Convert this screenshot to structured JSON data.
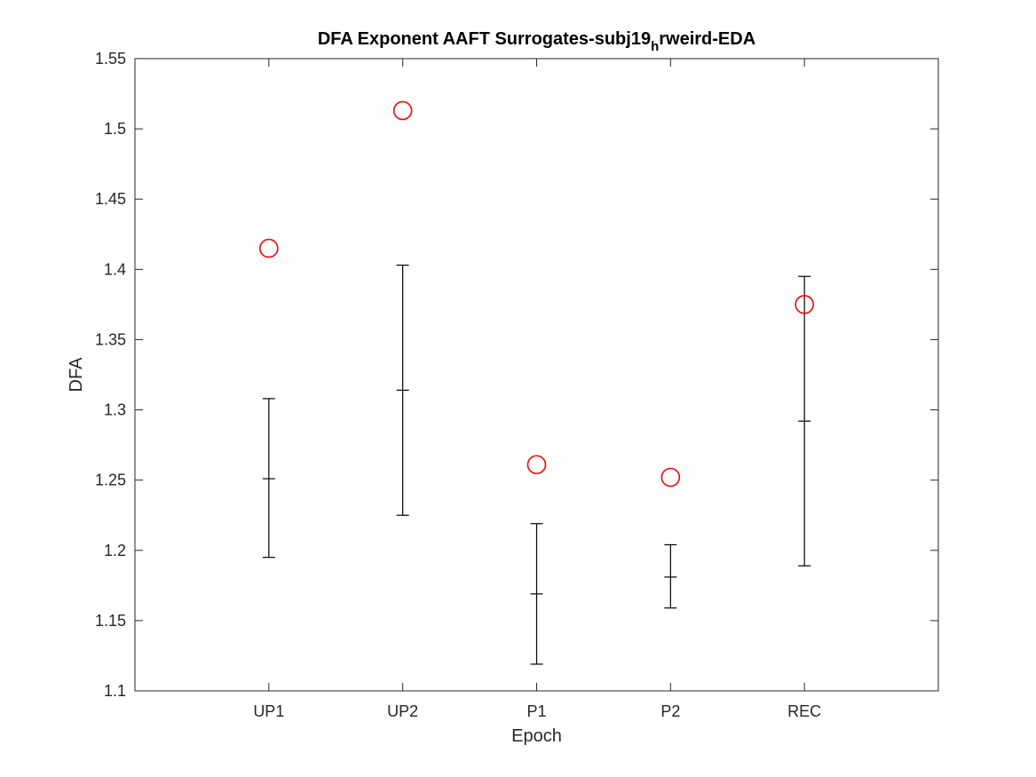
{
  "chart_data": {
    "type": "scatter",
    "title": {
      "main": "DFA Exponent AAFT Surrogates-subj19",
      "subscript": "h",
      "rest": "rweird-EDA"
    },
    "xlabel": "Epoch",
    "ylabel": "DFA",
    "categories": [
      "UP1",
      "UP2",
      "P1",
      "P2",
      "REC"
    ],
    "xlim": [
      0,
      6
    ],
    "ylim": [
      1.1,
      1.55
    ],
    "yticks": [
      1.1,
      1.15,
      1.2,
      1.25,
      1.3,
      1.35,
      1.4,
      1.45,
      1.5,
      1.55
    ],
    "ytick_labels": [
      "1.1",
      "1.15",
      "1.2",
      "1.25",
      "1.3",
      "1.35",
      "1.4",
      "1.45",
      "1.5",
      "1.55"
    ],
    "grid": false,
    "series": [
      {
        "kind": "errorbar",
        "color": "#000000",
        "mean": [
          1.251,
          1.314,
          1.169,
          1.181,
          1.292
        ],
        "lower": [
          1.195,
          1.225,
          1.119,
          1.159,
          1.189
        ],
        "upper": [
          1.308,
          1.403,
          1.219,
          1.204,
          1.395
        ]
      },
      {
        "kind": "marker",
        "marker": "circle",
        "color": "#ff0000",
        "values": [
          1.415,
          1.513,
          1.261,
          1.252,
          1.375
        ]
      }
    ]
  }
}
